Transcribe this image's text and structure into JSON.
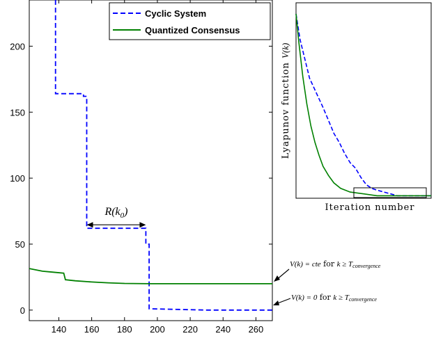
{
  "chart_data": [
    {
      "type": "line",
      "title": "",
      "xlabel": "",
      "ylabel": "",
      "xlim": [
        122,
        270
      ],
      "ylim": [
        -8,
        235
      ],
      "xticks": [
        140,
        160,
        180,
        200,
        220,
        240,
        260
      ],
      "yticks": [
        0,
        50,
        100,
        150,
        200
      ],
      "grid": false,
      "legend_position": "top-right",
      "series": [
        {
          "name": "Cyclic System",
          "color": "#0000ff",
          "style": "dashed",
          "x": [
            138,
            138,
            155,
            155,
            157,
            157,
            193,
            193,
            195,
            195,
            230,
            270
          ],
          "y": [
            235,
            164,
            164,
            162,
            162,
            62,
            62,
            50,
            50,
            1,
            0,
            0
          ]
        },
        {
          "name": "Quantized Consensus",
          "color": "#008000",
          "style": "solid",
          "x": [
            122,
            130,
            136,
            143,
            144,
            150,
            160,
            170,
            180,
            195,
            270
          ],
          "y": [
            31.5,
            29.5,
            28.8,
            28,
            23,
            22.2,
            21.3,
            20.7,
            20.2,
            20,
            20
          ]
        }
      ],
      "annotations": {
        "interval_label": "R(k",
        "interval_sub": "0",
        "interval_close": ")",
        "interval_x": [
          157,
          193
        ],
        "interval_y": 62,
        "cte_text_1": "V(k) = cte",
        "cte_text_2": " for ",
        "cte_text_3": "k ≥ T",
        "cte_sub": "convergence",
        "zero_text_1": "V(k) = 0",
        "zero_text_2": " for ",
        "zero_text_3": "k ≥ T",
        "zero_sub": "convergence"
      }
    },
    {
      "type": "line",
      "xlabel": "Iteration number",
      "ylabel_prefix": "Lyapunov function ",
      "ylabel_var": "V(k)",
      "axis_tick_labels": "none",
      "highlight_box": true,
      "series": [
        {
          "name": "Cyclic System",
          "color": "#0000ff",
          "style": "dashed",
          "x": [
            0,
            0.03,
            0.07,
            0.1,
            0.15,
            0.2,
            0.24,
            0.28,
            0.32,
            0.36,
            0.4,
            0.44,
            0.48,
            0.52,
            0.56,
            0.6,
            0.65,
            0.7,
            0.75,
            1
          ],
          "y": [
            1,
            0.86,
            0.74,
            0.65,
            0.57,
            0.49,
            0.42,
            0.35,
            0.3,
            0.24,
            0.19,
            0.16,
            0.11,
            0.07,
            0.05,
            0.04,
            0.03,
            0.02,
            0.01,
            0.01
          ]
        },
        {
          "name": "Quantized Consensus",
          "color": "#008000",
          "style": "solid",
          "x": [
            0,
            0.02,
            0.05,
            0.08,
            0.11,
            0.14,
            0.17,
            0.2,
            0.24,
            0.28,
            0.33,
            0.4,
            0.5,
            0.6,
            1
          ],
          "y": [
            1,
            0.85,
            0.66,
            0.51,
            0.39,
            0.3,
            0.23,
            0.17,
            0.12,
            0.08,
            0.05,
            0.03,
            0.02,
            0.01,
            0.01
          ]
        }
      ]
    }
  ]
}
